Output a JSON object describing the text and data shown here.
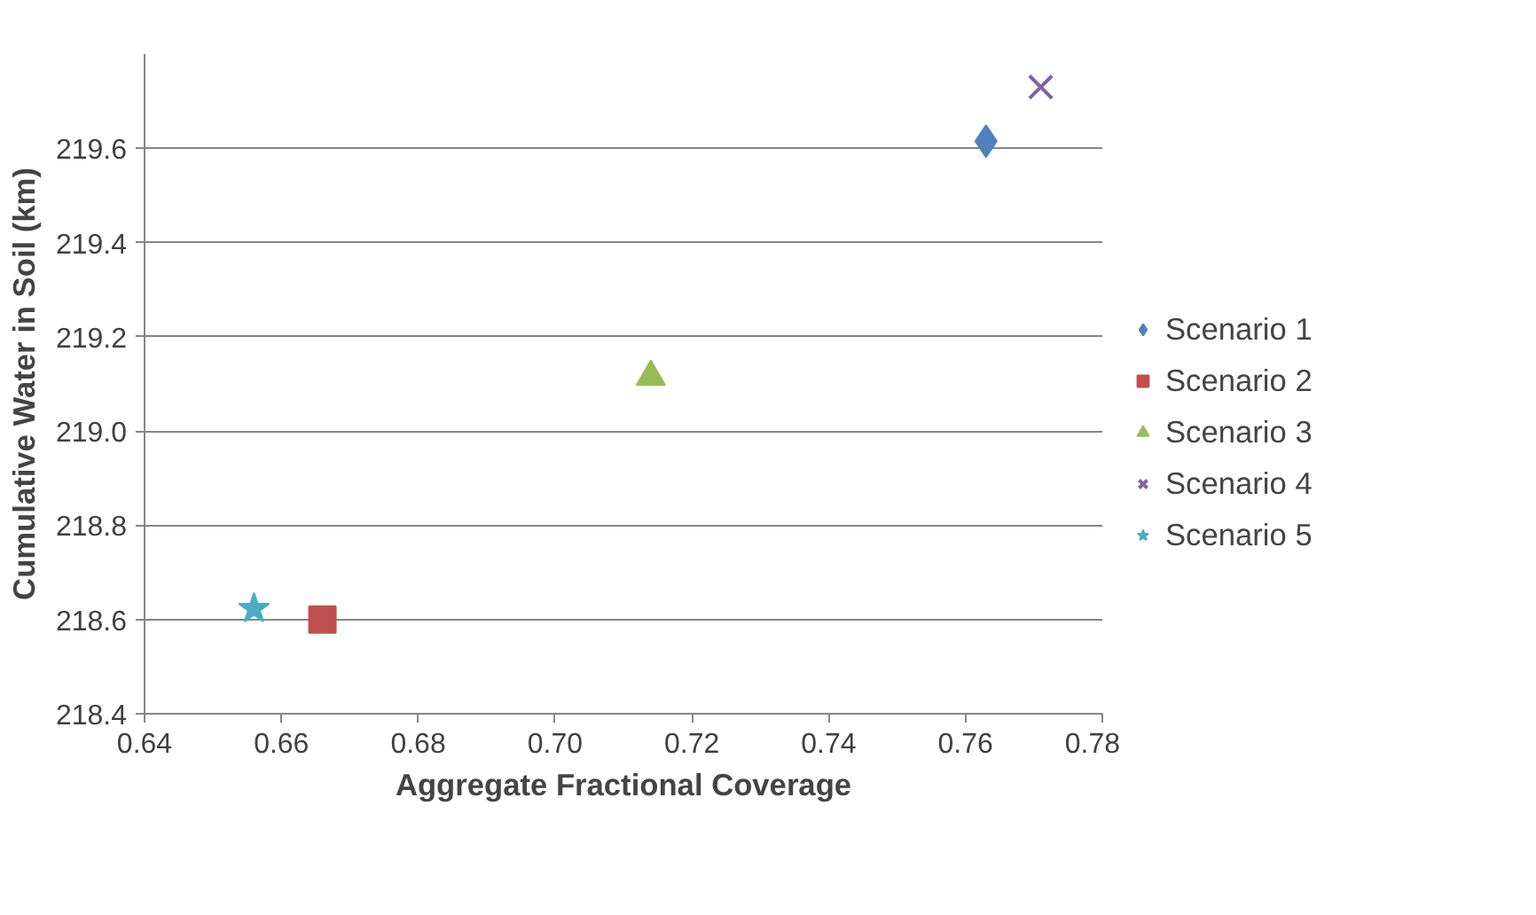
{
  "chart_data": {
    "type": "scatter",
    "xlabel": "Aggregate Fractional Coverage",
    "ylabel": "Cumulative Water in Soil (km)",
    "xlim": [
      0.64,
      0.78
    ],
    "ylim": [
      218.4,
      219.8
    ],
    "xticks": [
      0.64,
      0.66,
      0.68,
      {
        "value": 0.7,
        "label": "0.70"
      },
      0.72,
      0.74,
      0.76,
      0.78
    ],
    "yticks": [
      218.4,
      218.6,
      218.8,
      {
        "value": 219,
        "label": "219.0"
      },
      219.2,
      219.4,
      219.6
    ],
    "grid": "y",
    "legend": "right",
    "series": [
      {
        "name": "Scenario 1",
        "color": "#4f81bd",
        "marker": "diamond",
        "x": [
          0.763
        ],
        "values": [
          219.615
        ]
      },
      {
        "name": "Scenario 2",
        "color": "#c0504d",
        "marker": "square",
        "x": [
          0.666
        ],
        "values": [
          218.6
        ]
      },
      {
        "name": "Scenario 3",
        "color": "#9bbb59",
        "marker": "triangle",
        "x": [
          0.714
        ],
        "values": [
          219.115
        ]
      },
      {
        "name": "Scenario 4",
        "color": "#8064a2",
        "marker": "cross",
        "x": [
          0.771
        ],
        "values": [
          219.73
        ]
      },
      {
        "name": "Scenario 5",
        "color": "#4bacc6",
        "marker": "star",
        "x": [
          0.656
        ],
        "values": [
          218.623
        ]
      }
    ]
  }
}
